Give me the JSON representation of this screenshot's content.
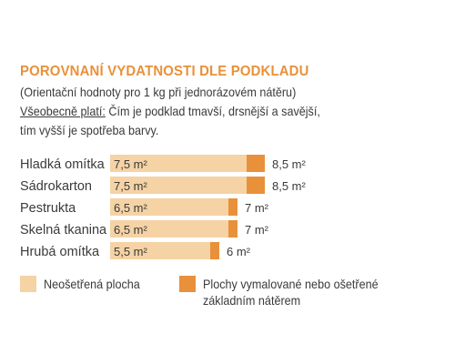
{
  "header": {
    "title": "POROVNANÍ VYDATNOSTI DLE PODKLADU",
    "subtitle": "(Orientační hodnoty pro 1 kg při jednorázovém nátěru)",
    "note_label": "Všeobecně platí:",
    "note_text": " Čím je podklad tmavší, drsnější a savější,",
    "note_text_2": "tím vyšší je spotřeba barvy."
  },
  "colors": {
    "untreated": "#f5d3a5",
    "treated": "#e8913a",
    "title": "#e8913a",
    "text": "#3a3a3a"
  },
  "chart_data": {
    "type": "bar",
    "orientation": "horizontal",
    "stacked": true,
    "categories": [
      "Hladká omítka",
      "Sádrokarton",
      "Pestrukta",
      "Skelná tkanina",
      "Hrubá omítka"
    ],
    "series": [
      {
        "name": "Neošetřená plocha",
        "values": [
          7.5,
          7.5,
          6.5,
          6.5,
          5.5
        ],
        "labels": [
          "7,5 m²",
          "7,5 m²",
          "6,5 m²",
          "6,5 m²",
          "5,5 m²"
        ]
      },
      {
        "name": "Plochy vymalované nebo ošetřené základním nátěrem",
        "values": [
          8.5,
          8.5,
          7,
          7,
          6
        ],
        "labels": [
          "8,5 m²",
          "8,5 m²",
          "7 m²",
          "7 m²",
          "6 m²"
        ]
      }
    ],
    "grid": false,
    "legend_position": "bottom"
  },
  "legend": {
    "untreated_label": "Neošetřená plocha",
    "treated_label_1": "Plochy vymalované nebo ošetřené",
    "treated_label_2": "základním nátěrem"
  }
}
